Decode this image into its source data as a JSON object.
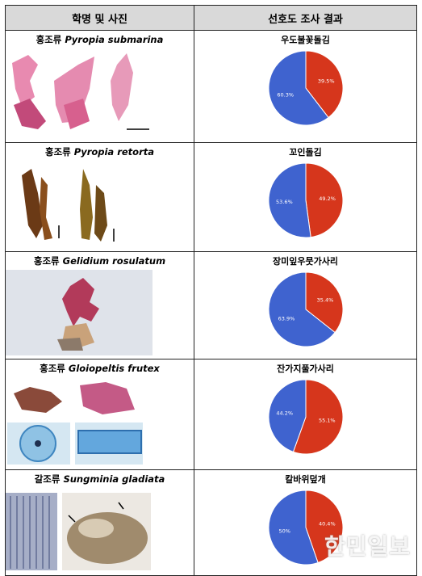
{
  "header": {
    "col1": "학명 및 사진",
    "col2": "선호도 조사 결과"
  },
  "colors": {
    "dislike": "#d6361c",
    "like": "#3f63cf",
    "header_bg": "#d9d9d9"
  },
  "rows": [
    {
      "group": "홍조류",
      "latin": "Pyropia submarina",
      "korean": "우도불꽃돌김",
      "chart_data": {
        "type": "pie",
        "slices": [
          {
            "value": 39.5,
            "label": "39.5%",
            "color": "#d6361c"
          },
          {
            "value": 60.3,
            "label": "60.3%",
            "color": "#3f63cf"
          }
        ]
      }
    },
    {
      "group": "홍조류",
      "latin": "Pyropia retorta",
      "korean": "꼬인돌김",
      "chart_data": {
        "type": "pie",
        "slices": [
          {
            "value": 49.2,
            "label": "49.2%",
            "color": "#d6361c"
          },
          {
            "value": 53.6,
            "label": "53.6%",
            "color": "#3f63cf"
          }
        ]
      }
    },
    {
      "group": "홍조류",
      "latin": "Gelidium rosulatum",
      "korean": "장미잎우뭇가사리",
      "chart_data": {
        "type": "pie",
        "slices": [
          {
            "value": 35.4,
            "label": "35.4%",
            "color": "#d6361c"
          },
          {
            "value": 63.9,
            "label": "63.9%",
            "color": "#3f63cf"
          }
        ]
      }
    },
    {
      "group": "홍조류",
      "latin": "Gloiopeltis frutex",
      "korean": "잔가지풀가사리",
      "chart_data": {
        "type": "pie",
        "slices": [
          {
            "value": 55.1,
            "label": "55.1%",
            "color": "#d6361c"
          },
          {
            "value": 44.2,
            "label": "44.2%",
            "color": "#3f63cf"
          }
        ]
      }
    },
    {
      "group": "갈조류",
      "latin": "Sungminia gladiata",
      "korean": "칼바위덮개",
      "chart_data": {
        "type": "pie",
        "slices": [
          {
            "value": 40.4,
            "label": "40.4%",
            "color": "#d6361c"
          },
          {
            "value": 50,
            "label": "50%",
            "color": "#3f63cf"
          }
        ]
      }
    }
  ],
  "watermark": "한민일보"
}
